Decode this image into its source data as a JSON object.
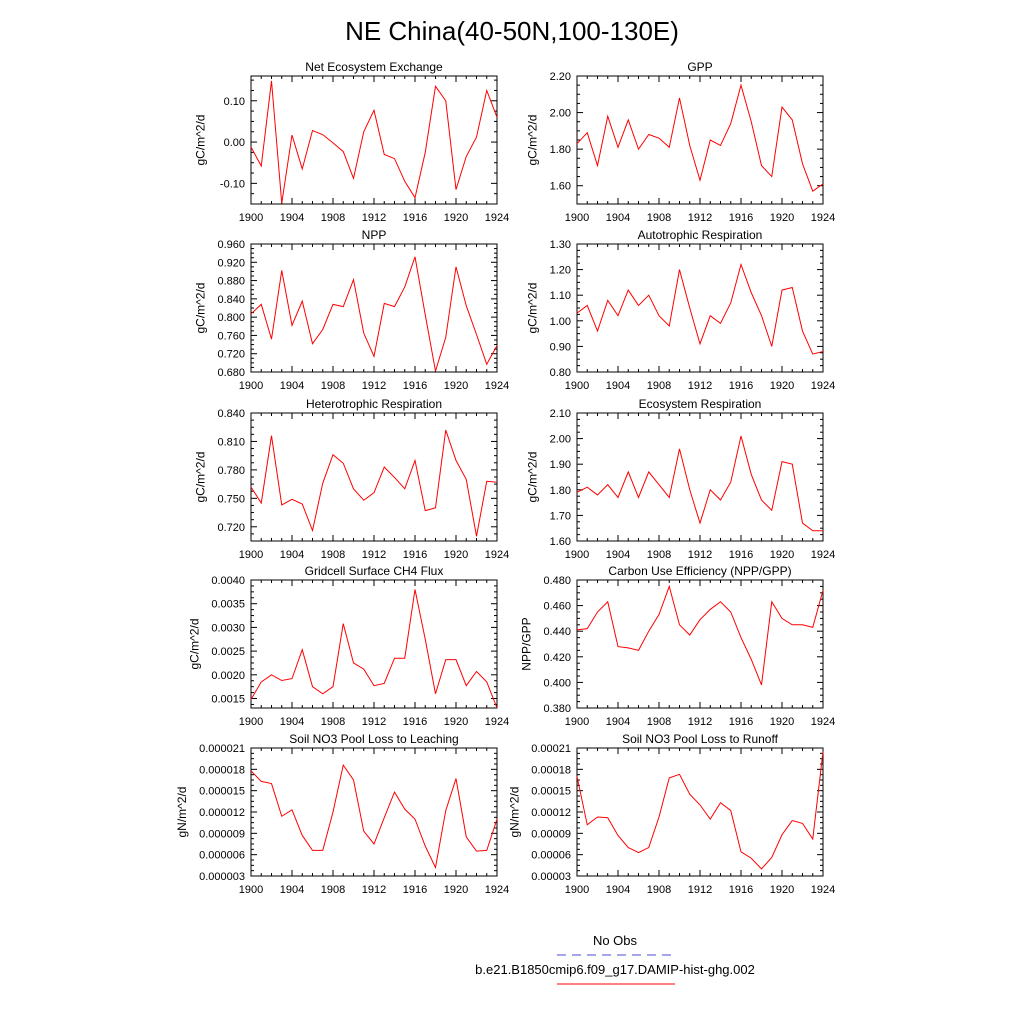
{
  "figure": {
    "title": "NE China(40-50N,100-130E)"
  },
  "legend": {
    "entries": [
      {
        "label": "No Obs",
        "color": "#4b4bd6",
        "style": "dashed"
      },
      {
        "label": "b.e21.B1850cmip6.f09_g17.DAMIP-hist-ghg.002",
        "color": "#ff0000",
        "style": "solid"
      }
    ]
  },
  "chart_data": [
    {
      "type": "line",
      "title": "Net Ecosystem Exchange",
      "ylabel": "gC/m^2/d",
      "xlim": [
        1900,
        1924
      ],
      "ylim": [
        -0.15,
        0.16
      ],
      "xticks": [
        1900,
        1904,
        1908,
        1912,
        1916,
        1920,
        1924
      ],
      "xtick_labels": [
        "1900",
        "1904",
        "1908",
        "1912",
        "1916",
        "1920",
        "1924"
      ],
      "yticks": [
        -0.1,
        0.0,
        0.1
      ],
      "ytick_labels": [
        "-0.10",
        "0.00",
        "0.10"
      ],
      "x": [
        1900,
        1901,
        1902,
        1903,
        1904,
        1905,
        1906,
        1907,
        1908,
        1909,
        1910,
        1911,
        1912,
        1913,
        1914,
        1915,
        1916,
        1917,
        1918,
        1919,
        1920,
        1921,
        1922,
        1923,
        1924
      ],
      "series": [
        {
          "color": "#ff0000",
          "values": [
            -0.012,
            -0.058,
            0.148,
            -0.148,
            0.017,
            -0.065,
            0.028,
            0.018,
            -0.002,
            -0.023,
            -0.088,
            0.025,
            0.077,
            -0.03,
            -0.04,
            -0.095,
            -0.135,
            -0.025,
            0.135,
            0.1,
            -0.115,
            -0.035,
            0.012,
            0.125,
            0.06
          ]
        }
      ]
    },
    {
      "type": "line",
      "title": "GPP",
      "ylabel": "gC/m^2/d",
      "xlim": [
        1900,
        1924
      ],
      "ylim": [
        1.5,
        2.2
      ],
      "xticks": [
        1900,
        1904,
        1908,
        1912,
        1916,
        1920,
        1924
      ],
      "xtick_labels": [
        "1900",
        "1904",
        "1908",
        "1912",
        "1916",
        "1920",
        "1924"
      ],
      "yticks": [
        1.6,
        1.8,
        2.0,
        2.2
      ],
      "ytick_labels": [
        "1.60",
        "1.80",
        "2.00",
        "2.20"
      ],
      "x": [
        1900,
        1901,
        1902,
        1903,
        1904,
        1905,
        1906,
        1907,
        1908,
        1909,
        1910,
        1911,
        1912,
        1913,
        1914,
        1915,
        1916,
        1917,
        1918,
        1919,
        1920,
        1921,
        1922,
        1923,
        1924
      ],
      "series": [
        {
          "color": "#ff0000",
          "values": [
            1.83,
            1.89,
            1.71,
            1.98,
            1.81,
            1.96,
            1.8,
            1.88,
            1.86,
            1.81,
            2.08,
            1.82,
            1.63,
            1.85,
            1.82,
            1.94,
            2.15,
            1.95,
            1.71,
            1.65,
            2.03,
            1.96,
            1.72,
            1.57,
            1.61
          ]
        }
      ]
    },
    {
      "type": "line",
      "title": "NPP",
      "ylabel": "gC/m^2/d",
      "xlim": [
        1900,
        1924
      ],
      "ylim": [
        0.68,
        0.96
      ],
      "xticks": [
        1900,
        1904,
        1908,
        1912,
        1916,
        1920,
        1924
      ],
      "xtick_labels": [
        "1900",
        "1904",
        "1908",
        "1912",
        "1916",
        "1920",
        "1924"
      ],
      "yticks": [
        0.68,
        0.72,
        0.76,
        0.8,
        0.84,
        0.88,
        0.92,
        0.96
      ],
      "ytick_labels": [
        "0.680",
        "0.720",
        "0.760",
        "0.800",
        "0.840",
        "0.880",
        "0.920",
        "0.960"
      ],
      "x": [
        1900,
        1901,
        1902,
        1903,
        1904,
        1905,
        1906,
        1907,
        1908,
        1909,
        1910,
        1911,
        1912,
        1913,
        1914,
        1915,
        1916,
        1917,
        1918,
        1919,
        1920,
        1921,
        1922,
        1923,
        1924
      ],
      "series": [
        {
          "color": "#ff0000",
          "values": [
            0.807,
            0.828,
            0.752,
            0.902,
            0.782,
            0.835,
            0.742,
            0.773,
            0.828,
            0.823,
            0.882,
            0.765,
            0.714,
            0.83,
            0.823,
            0.866,
            0.932,
            0.805,
            0.682,
            0.756,
            0.91,
            0.825,
            0.762,
            0.697,
            0.738
          ]
        }
      ]
    },
    {
      "type": "line",
      "title": "Autotrophic Respiration",
      "ylabel": "gC/m^2/d",
      "xlim": [
        1900,
        1924
      ],
      "ylim": [
        0.8,
        1.3
      ],
      "xticks": [
        1900,
        1904,
        1908,
        1912,
        1916,
        1920,
        1924
      ],
      "xtick_labels": [
        "1900",
        "1904",
        "1908",
        "1912",
        "1916",
        "1920",
        "1924"
      ],
      "yticks": [
        0.8,
        0.9,
        1.0,
        1.1,
        1.2,
        1.3
      ],
      "ytick_labels": [
        "0.80",
        "0.90",
        "1.00",
        "1.10",
        "1.20",
        "1.30"
      ],
      "x": [
        1900,
        1901,
        1902,
        1903,
        1904,
        1905,
        1906,
        1907,
        1908,
        1909,
        1910,
        1911,
        1912,
        1913,
        1914,
        1915,
        1916,
        1917,
        1918,
        1919,
        1920,
        1921,
        1922,
        1923,
        1924
      ],
      "series": [
        {
          "color": "#ff0000",
          "values": [
            1.03,
            1.06,
            0.96,
            1.08,
            1.02,
            1.12,
            1.06,
            1.1,
            1.02,
            0.98,
            1.2,
            1.05,
            0.91,
            1.02,
            0.99,
            1.07,
            1.22,
            1.11,
            1.02,
            0.9,
            1.12,
            1.13,
            0.96,
            0.87,
            0.88
          ]
        }
      ]
    },
    {
      "type": "line",
      "title": "Heterotrophic Respiration",
      "ylabel": "gC/m^2/d",
      "xlim": [
        1900,
        1924
      ],
      "ylim": [
        0.705,
        0.84
      ],
      "xticks": [
        1900,
        1904,
        1908,
        1912,
        1916,
        1920,
        1924
      ],
      "xtick_labels": [
        "1900",
        "1904",
        "1908",
        "1912",
        "1916",
        "1920",
        "1924"
      ],
      "yticks": [
        0.72,
        0.75,
        0.78,
        0.81,
        0.84
      ],
      "ytick_labels": [
        "0.720",
        "0.750",
        "0.780",
        "0.810",
        "0.840"
      ],
      "x": [
        1900,
        1901,
        1902,
        1903,
        1904,
        1905,
        1906,
        1907,
        1908,
        1909,
        1910,
        1911,
        1912,
        1913,
        1914,
        1915,
        1916,
        1917,
        1918,
        1919,
        1920,
        1921,
        1922,
        1923,
        1924
      ],
      "series": [
        {
          "color": "#ff0000",
          "values": [
            0.762,
            0.745,
            0.816,
            0.743,
            0.749,
            0.744,
            0.716,
            0.766,
            0.796,
            0.787,
            0.76,
            0.748,
            0.756,
            0.783,
            0.772,
            0.76,
            0.79,
            0.737,
            0.74,
            0.822,
            0.79,
            0.77,
            0.71,
            0.768,
            0.767
          ]
        }
      ]
    },
    {
      "type": "line",
      "title": "Ecosystem Respiration",
      "ylabel": "gC/m^2/d",
      "xlim": [
        1900,
        1924
      ],
      "ylim": [
        1.6,
        2.1
      ],
      "xticks": [
        1900,
        1904,
        1908,
        1912,
        1916,
        1920,
        1924
      ],
      "xtick_labels": [
        "1900",
        "1904",
        "1908",
        "1912",
        "1916",
        "1920",
        "1924"
      ],
      "yticks": [
        1.6,
        1.7,
        1.8,
        1.9,
        2.0,
        2.1
      ],
      "ytick_labels": [
        "1.60",
        "1.70",
        "1.80",
        "1.90",
        "2.00",
        "2.10"
      ],
      "x": [
        1900,
        1901,
        1902,
        1903,
        1904,
        1905,
        1906,
        1907,
        1908,
        1909,
        1910,
        1911,
        1912,
        1913,
        1914,
        1915,
        1916,
        1917,
        1918,
        1919,
        1920,
        1921,
        1922,
        1923,
        1924
      ],
      "series": [
        {
          "color": "#ff0000",
          "values": [
            1.79,
            1.81,
            1.78,
            1.82,
            1.77,
            1.87,
            1.77,
            1.87,
            1.82,
            1.77,
            1.96,
            1.8,
            1.67,
            1.8,
            1.76,
            1.83,
            2.01,
            1.86,
            1.76,
            1.72,
            1.91,
            1.9,
            1.67,
            1.64,
            1.64
          ]
        }
      ]
    },
    {
      "type": "line",
      "title": "Gridcell Surface CH4 Flux",
      "ylabel": "gC/m^2/d",
      "xlim": [
        1900,
        1924
      ],
      "ylim": [
        0.0013,
        0.004
      ],
      "xticks": [
        1900,
        1904,
        1908,
        1912,
        1916,
        1920,
        1924
      ],
      "xtick_labels": [
        "1900",
        "1904",
        "1908",
        "1912",
        "1916",
        "1920",
        "1924"
      ],
      "yticks": [
        0.0015,
        0.002,
        0.0025,
        0.003,
        0.0035,
        0.004
      ],
      "ytick_labels": [
        "0.0015",
        "0.0020",
        "0.0025",
        "0.0030",
        "0.0035",
        "0.0040"
      ],
      "x": [
        1900,
        1901,
        1902,
        1903,
        1904,
        1905,
        1906,
        1907,
        1908,
        1909,
        1910,
        1911,
        1912,
        1913,
        1914,
        1915,
        1916,
        1917,
        1918,
        1919,
        1920,
        1921,
        1922,
        1923,
        1924
      ],
      "series": [
        {
          "color": "#ff0000",
          "values": [
            0.00148,
            0.00185,
            0.002,
            0.00188,
            0.00192,
            0.00253,
            0.00175,
            0.0016,
            0.00175,
            0.00308,
            0.00225,
            0.00212,
            0.00177,
            0.00182,
            0.00235,
            0.00235,
            0.0038,
            0.00275,
            0.0016,
            0.00232,
            0.00232,
            0.00177,
            0.00207,
            0.00185,
            0.0013
          ]
        }
      ]
    },
    {
      "type": "line",
      "title": "Carbon Use Efficiency (NPP/GPP)",
      "ylabel": "NPP/GPP",
      "xlim": [
        1900,
        1924
      ],
      "ylim": [
        0.38,
        0.48
      ],
      "xticks": [
        1900,
        1904,
        1908,
        1912,
        1916,
        1920,
        1924
      ],
      "xtick_labels": [
        "1900",
        "1904",
        "1908",
        "1912",
        "1916",
        "1920",
        "1924"
      ],
      "yticks": [
        0.38,
        0.4,
        0.42,
        0.44,
        0.46,
        0.48
      ],
      "ytick_labels": [
        "0.380",
        "0.400",
        "0.420",
        "0.440",
        "0.460",
        "0.480"
      ],
      "x": [
        1900,
        1901,
        1902,
        1903,
        1904,
        1905,
        1906,
        1907,
        1908,
        1909,
        1910,
        1911,
        1912,
        1913,
        1914,
        1915,
        1916,
        1917,
        1918,
        1919,
        1920,
        1921,
        1922,
        1923,
        1924
      ],
      "series": [
        {
          "color": "#ff0000",
          "values": [
            0.441,
            0.442,
            0.455,
            0.463,
            0.428,
            0.427,
            0.425,
            0.44,
            0.453,
            0.475,
            0.445,
            0.437,
            0.449,
            0.457,
            0.463,
            0.455,
            0.435,
            0.418,
            0.398,
            0.463,
            0.45,
            0.445,
            0.445,
            0.443,
            0.472
          ]
        }
      ]
    },
    {
      "type": "line",
      "title": "Soil NO3 Pool Loss to Leaching",
      "ylabel": "gN/m^2/d",
      "xlim": [
        1900,
        1924
      ],
      "ylim": [
        3e-06,
        2.1e-05
      ],
      "xticks": [
        1900,
        1904,
        1908,
        1912,
        1916,
        1920,
        1924
      ],
      "xtick_labels": [
        "1900",
        "1904",
        "1908",
        "1912",
        "1916",
        "1920",
        "1924"
      ],
      "yticks": [
        3e-06,
        6e-06,
        9e-06,
        1.2e-05,
        1.5e-05,
        1.8e-05,
        2.1e-05
      ],
      "ytick_labels": [
        "0.000003",
        "0.000006",
        "0.000009",
        "0.000012",
        "0.000015",
        "0.000018",
        "0.000021"
      ],
      "x": [
        1900,
        1901,
        1902,
        1903,
        1904,
        1905,
        1906,
        1907,
        1908,
        1909,
        1910,
        1911,
        1912,
        1913,
        1914,
        1915,
        1916,
        1917,
        1918,
        1919,
        1920,
        1921,
        1922,
        1923,
        1924
      ],
      "series": [
        {
          "color": "#ff0000",
          "values": [
            1.78e-05,
            1.63e-05,
            1.6e-05,
            1.14e-05,
            1.23e-05,
            8.7e-06,
            6.6e-06,
            6.6e-06,
            1.2e-05,
            1.86e-05,
            1.65e-05,
            9.3e-06,
            7.5e-06,
            1.12e-05,
            1.48e-05,
            1.24e-05,
            1.1e-05,
            7.2e-06,
            4.2e-06,
            1.22e-05,
            1.67e-05,
            8.5e-06,
            6.5e-06,
            6.6e-06,
            1.1e-05
          ]
        }
      ]
    },
    {
      "type": "line",
      "title": "Soil NO3 Pool Loss to Runoff",
      "ylabel": "gN/m^2/d",
      "xlim": [
        1900,
        1924
      ],
      "ylim": [
        3e-05,
        0.00021
      ],
      "xticks": [
        1900,
        1904,
        1908,
        1912,
        1916,
        1920,
        1924
      ],
      "xtick_labels": [
        "1900",
        "1904",
        "1908",
        "1912",
        "1916",
        "1920",
        "1924"
      ],
      "yticks": [
        3e-05,
        6e-05,
        9e-05,
        0.00012,
        0.00015,
        0.00018,
        0.00021
      ],
      "ytick_labels": [
        "0.00003",
        "0.00006",
        "0.00009",
        "0.00012",
        "0.00015",
        "0.00018",
        "0.00021"
      ],
      "x": [
        1900,
        1901,
        1902,
        1903,
        1904,
        1905,
        1906,
        1907,
        1908,
        1909,
        1910,
        1911,
        1912,
        1913,
        1914,
        1915,
        1916,
        1917,
        1918,
        1919,
        1920,
        1921,
        1922,
        1923,
        1924
      ],
      "series": [
        {
          "color": "#ff0000",
          "values": [
            0.00017,
            0.000102,
            0.000113,
            0.000112,
            8.7e-05,
            7e-05,
            6.3e-05,
            7e-05,
            0.000113,
            0.000168,
            0.000173,
            0.000145,
            0.00013,
            0.00011,
            0.000133,
            0.000122,
            6.4e-05,
            5.5e-05,
            4e-05,
            5.6e-05,
            8.8e-05,
            0.000108,
            0.000104,
            8.2e-05,
            0.000205
          ]
        }
      ]
    }
  ]
}
